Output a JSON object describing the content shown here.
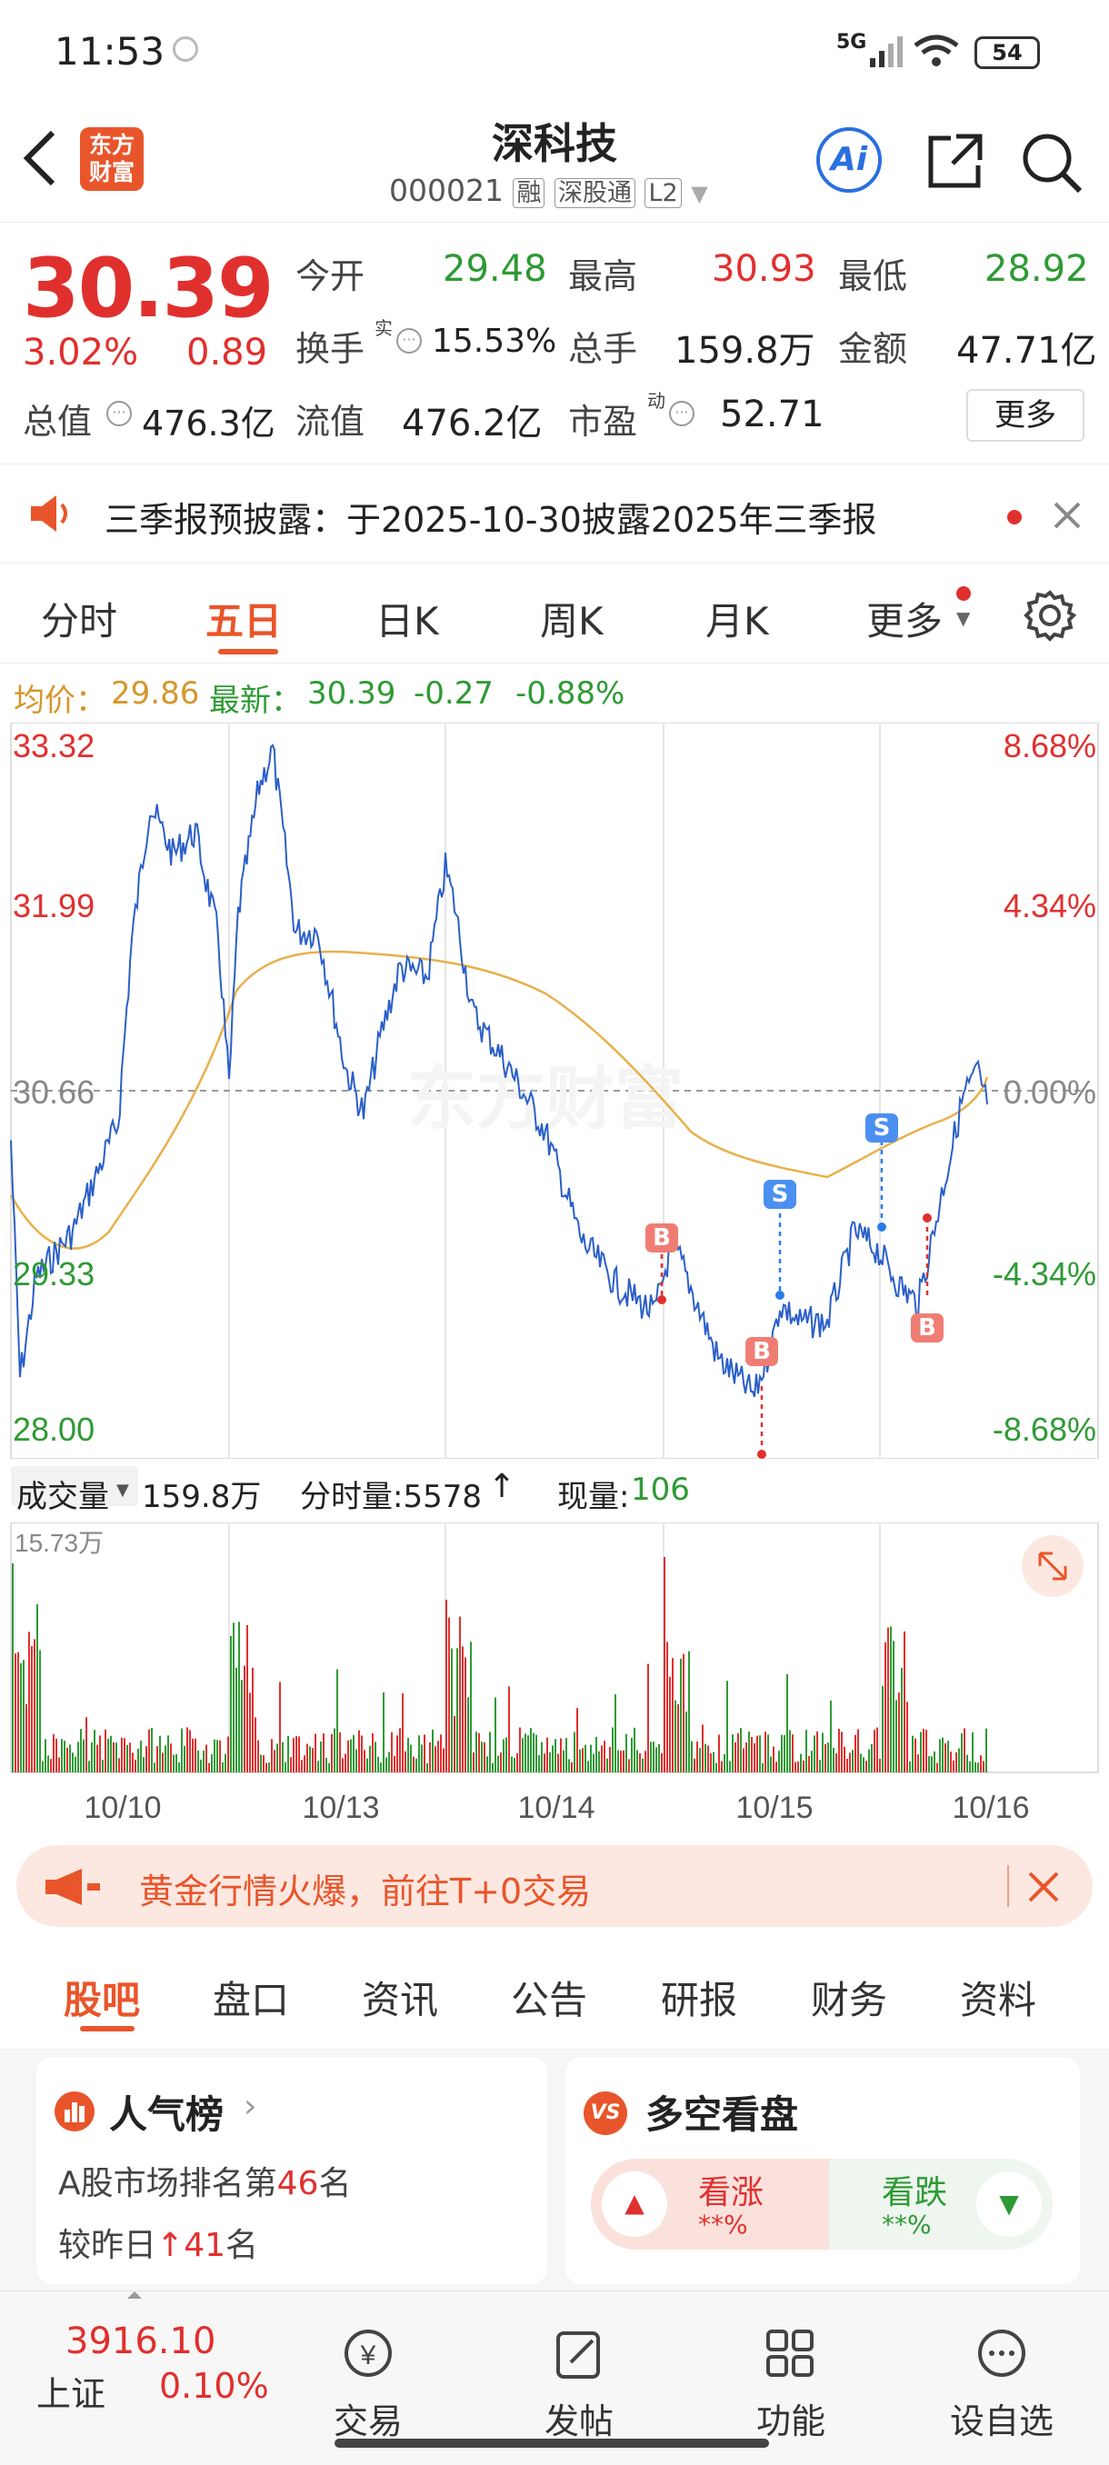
{
  "status": {
    "time": "11:53",
    "network": "5G",
    "battery": "54"
  },
  "header": {
    "stock_name": "深科技",
    "code": "000021",
    "badges": [
      "融",
      "深股通",
      "L2"
    ],
    "logo_text": "东方财富",
    "ai_label": "Ai"
  },
  "quote": {
    "price": "30.39",
    "change_pct": "3.02%",
    "change": "0.89",
    "open_label": "今开",
    "open": "29.48",
    "high_label": "最高",
    "high": "30.93",
    "low_label": "最低",
    "low": "28.92",
    "turnover_label": "换手",
    "turnover_sup": "实",
    "turnover": "15.53%",
    "volume_label": "总手",
    "volume": "159.8万",
    "amount_label": "金额",
    "amount": "47.71亿",
    "mcap_label": "总值",
    "mcap": "476.3亿",
    "float_label": "流值",
    "float_value": "476.2亿",
    "pe_label": "市盈",
    "pe_sup": "动",
    "pe": "52.71",
    "more": "更多"
  },
  "notice": {
    "text": "三季报预披露：于2025-10-30披露2025年三季报"
  },
  "tabs": [
    "分时",
    "五日",
    "日K",
    "周K",
    "月K",
    "更多"
  ],
  "summary": {
    "avg_label": "均价：",
    "avg": "29.86",
    "latest_label": "最新：",
    "latest": "30.39",
    "chg": "-0.27",
    "chg_pct": "-0.88%"
  },
  "chart_data": {
    "type": "line",
    "y_left_ticks": [
      "33.32",
      "31.99",
      "30.66",
      "29.33",
      "28.00"
    ],
    "y_right_ticks": [
      "8.68%",
      "4.34%",
      "0.00%",
      "-4.34%",
      "-8.68%"
    ],
    "ylim": [
      28.0,
      33.32
    ],
    "x_labels": [
      "10/10",
      "10/13",
      "10/14",
      "10/15",
      "10/16"
    ],
    "series": [
      {
        "name": "最新"
      },
      {
        "name": "均价"
      }
    ],
    "markers": [
      "B",
      "S",
      "B",
      "S",
      "B"
    ],
    "watermark": "东方财富"
  },
  "volume": {
    "label": "成交量",
    "value": "159.8万",
    "tick_label": "分时量:5578",
    "now_label": "现量:",
    "now": "106",
    "max": "15.73万"
  },
  "promo": {
    "text": "黄金行情火爆，前往T+0交易"
  },
  "tabs2": [
    "股吧",
    "盘口",
    "资讯",
    "公告",
    "研报",
    "财务",
    "资料"
  ],
  "card1": {
    "title": "人气榜",
    "line1_prefix": "A股市场排名第",
    "rank": "46",
    "line1_suffix": "名",
    "line2_prefix": "较昨日",
    "delta": "41",
    "line2_suffix": "名"
  },
  "card2": {
    "title": "多空看盘",
    "up": "看涨",
    "up_val": "**%",
    "down": "看跌",
    "down_val": "**%"
  },
  "bottom": {
    "index_value": "3916.10",
    "index_name": "上证",
    "index_pct": "0.10%",
    "items": [
      "交易",
      "发帖",
      "功能",
      "设自选"
    ]
  }
}
